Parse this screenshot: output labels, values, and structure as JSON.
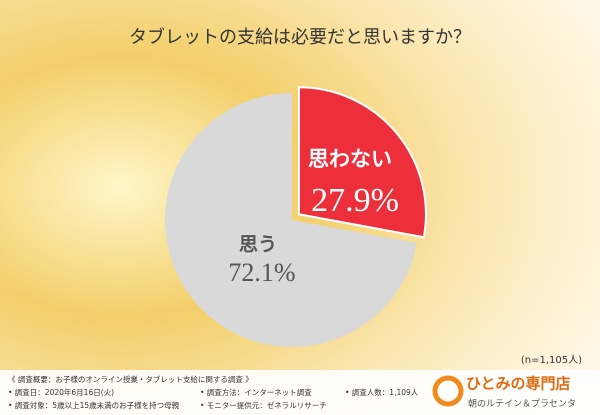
{
  "chart_data": {
    "type": "pie",
    "title": "タブレットの支給は必要だと思いますか？",
    "categories": [
      "思わない",
      "思う"
    ],
    "values": [
      27.9,
      72.1
    ],
    "value_labels": [
      "27.9%",
      "72.1%"
    ],
    "colors": [
      "#ec2f3a",
      "#d9d9d9"
    ],
    "sample_note": "(n=1,105人)",
    "notes": [
      "《 調査概要：お子様のオンライン授業・タブレット支給に関する調査 》",
      "• 調査日：2020年6月16日(火)",
      "• 調査方法：インターネット調査",
      "• 調査人数：1,109人",
      "• 調査対象：5歳以上15歳未満のお子様を持つ母親",
      "• モニター提供元：ゼネラルリサーチ"
    ],
    "brand": "ひとみの専門店",
    "brand_sub": "朝のルテイン＆プラセンタ"
  }
}
